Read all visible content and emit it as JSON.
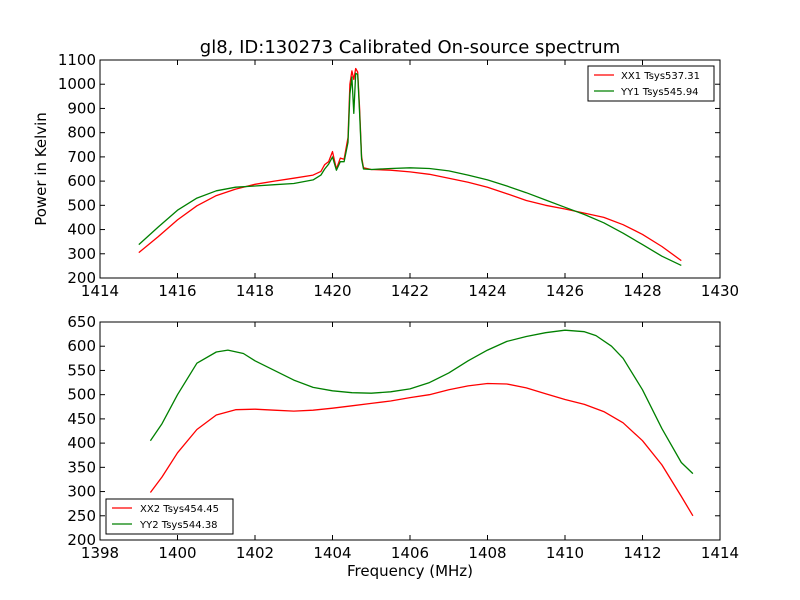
{
  "chart_data": [
    {
      "type": "line",
      "title": "gl8, ID:130273 Calibrated On-source spectrum",
      "xlabel": "",
      "ylabel": "Power in Kelvin",
      "xlim": [
        1414,
        1430
      ],
      "ylim": [
        200,
        1100
      ],
      "xticks": [
        1414,
        1416,
        1418,
        1420,
        1422,
        1424,
        1426,
        1428,
        1430
      ],
      "yticks": [
        200,
        300,
        400,
        500,
        600,
        700,
        800,
        900,
        1000,
        1100
      ],
      "legend_position": "top-right",
      "series": [
        {
          "name": "XX1 Tsys537.31",
          "color": "#ff0000",
          "points": [
            [
              1415.0,
              305
            ],
            [
              1415.5,
              370
            ],
            [
              1416.0,
              440
            ],
            [
              1416.5,
              498
            ],
            [
              1417.0,
              540
            ],
            [
              1417.5,
              567
            ],
            [
              1418.0,
              587
            ],
            [
              1418.5,
              600
            ],
            [
              1419.0,
              612
            ],
            [
              1419.5,
              625
            ],
            [
              1419.7,
              640
            ],
            [
              1419.8,
              668
            ],
            [
              1419.9,
              680
            ],
            [
              1420.0,
              722
            ],
            [
              1420.1,
              650
            ],
            [
              1420.2,
              695
            ],
            [
              1420.3,
              690
            ],
            [
              1420.4,
              780
            ],
            [
              1420.45,
              1000
            ],
            [
              1420.5,
              1055
            ],
            [
              1420.55,
              1020
            ],
            [
              1420.6,
              1065
            ],
            [
              1420.65,
              1050
            ],
            [
              1420.7,
              900
            ],
            [
              1420.75,
              700
            ],
            [
              1420.8,
              655
            ],
            [
              1421.0,
              648
            ],
            [
              1421.5,
              645
            ],
            [
              1422.0,
              638
            ],
            [
              1422.5,
              628
            ],
            [
              1423.0,
              612
            ],
            [
              1423.5,
              595
            ],
            [
              1424.0,
              575
            ],
            [
              1424.5,
              548
            ],
            [
              1425.0,
              520
            ],
            [
              1425.5,
              500
            ],
            [
              1426.0,
              485
            ],
            [
              1426.5,
              468
            ],
            [
              1427.0,
              450
            ],
            [
              1427.5,
              420
            ],
            [
              1428.0,
              380
            ],
            [
              1428.5,
              330
            ],
            [
              1429.0,
              272
            ]
          ]
        },
        {
          "name": "YY1 Tsys545.94",
          "color": "#008000",
          "points": [
            [
              1415.0,
              338
            ],
            [
              1415.5,
              410
            ],
            [
              1416.0,
              480
            ],
            [
              1416.5,
              530
            ],
            [
              1417.0,
              560
            ],
            [
              1417.5,
              575
            ],
            [
              1418.0,
              580
            ],
            [
              1418.5,
              585
            ],
            [
              1419.0,
              590
            ],
            [
              1419.5,
              605
            ],
            [
              1419.7,
              625
            ],
            [
              1419.8,
              650
            ],
            [
              1419.9,
              670
            ],
            [
              1420.0,
              700
            ],
            [
              1420.1,
              645
            ],
            [
              1420.2,
              680
            ],
            [
              1420.3,
              680
            ],
            [
              1420.4,
              760
            ],
            [
              1420.45,
              960
            ],
            [
              1420.5,
              1030
            ],
            [
              1420.55,
              880
            ],
            [
              1420.6,
              1045
            ],
            [
              1420.65,
              1040
            ],
            [
              1420.7,
              880
            ],
            [
              1420.75,
              690
            ],
            [
              1420.8,
              650
            ],
            [
              1421.0,
              648
            ],
            [
              1421.5,
              652
            ],
            [
              1422.0,
              655
            ],
            [
              1422.5,
              652
            ],
            [
              1423.0,
              642
            ],
            [
              1423.5,
              625
            ],
            [
              1424.0,
              605
            ],
            [
              1424.5,
              580
            ],
            [
              1425.0,
              552
            ],
            [
              1425.5,
              522
            ],
            [
              1426.0,
              492
            ],
            [
              1426.5,
              462
            ],
            [
              1427.0,
              428
            ],
            [
              1427.5,
              385
            ],
            [
              1428.0,
              338
            ],
            [
              1428.5,
              290
            ],
            [
              1429.0,
              252
            ]
          ]
        }
      ]
    },
    {
      "type": "line",
      "title": "",
      "xlabel": "Frequency (MHz)",
      "ylabel": "",
      "xlim": [
        1398,
        1414
      ],
      "ylim": [
        200,
        650
      ],
      "xticks": [
        1398,
        1400,
        1402,
        1404,
        1406,
        1408,
        1410,
        1412,
        1414
      ],
      "yticks": [
        200,
        250,
        300,
        350,
        400,
        450,
        500,
        550,
        600,
        650
      ],
      "legend_position": "bottom-left",
      "series": [
        {
          "name": "XX2 Tsys454.45",
          "color": "#ff0000",
          "points": [
            [
              1399.3,
              298
            ],
            [
              1399.6,
              330
            ],
            [
              1400.0,
              380
            ],
            [
              1400.5,
              428
            ],
            [
              1401.0,
              458
            ],
            [
              1401.5,
              469
            ],
            [
              1402.0,
              470
            ],
            [
              1402.5,
              468
            ],
            [
              1403.0,
              466
            ],
            [
              1403.5,
              468
            ],
            [
              1404.0,
              472
            ],
            [
              1404.5,
              477
            ],
            [
              1405.0,
              482
            ],
            [
              1405.5,
              487
            ],
            [
              1406.0,
              494
            ],
            [
              1406.5,
              500
            ],
            [
              1407.0,
              510
            ],
            [
              1407.5,
              518
            ],
            [
              1408.0,
              523
            ],
            [
              1408.5,
              522
            ],
            [
              1409.0,
              514
            ],
            [
              1409.5,
              502
            ],
            [
              1410.0,
              490
            ],
            [
              1410.5,
              480
            ],
            [
              1411.0,
              465
            ],
            [
              1411.5,
              442
            ],
            [
              1412.0,
              405
            ],
            [
              1412.5,
              355
            ],
            [
              1413.0,
              290
            ],
            [
              1413.3,
              250
            ]
          ]
        },
        {
          "name": "YY2 Tsys544.38",
          "color": "#008000",
          "points": [
            [
              1399.3,
              405
            ],
            [
              1399.6,
              440
            ],
            [
              1400.0,
              500
            ],
            [
              1400.5,
              565
            ],
            [
              1401.0,
              588
            ],
            [
              1401.3,
              592
            ],
            [
              1401.7,
              585
            ],
            [
              1402.0,
              570
            ],
            [
              1402.5,
              550
            ],
            [
              1403.0,
              530
            ],
            [
              1403.5,
              515
            ],
            [
              1404.0,
              508
            ],
            [
              1404.5,
              504
            ],
            [
              1405.0,
              503
            ],
            [
              1405.5,
              506
            ],
            [
              1406.0,
              512
            ],
            [
              1406.5,
              525
            ],
            [
              1407.0,
              545
            ],
            [
              1407.5,
              570
            ],
            [
              1408.0,
              592
            ],
            [
              1408.5,
              610
            ],
            [
              1409.0,
              620
            ],
            [
              1409.5,
              628
            ],
            [
              1410.0,
              633
            ],
            [
              1410.5,
              630
            ],
            [
              1410.8,
              622
            ],
            [
              1411.2,
              600
            ],
            [
              1411.5,
              575
            ],
            [
              1412.0,
              510
            ],
            [
              1412.5,
              430
            ],
            [
              1413.0,
              360
            ],
            [
              1413.3,
              337
            ]
          ]
        }
      ]
    }
  ]
}
